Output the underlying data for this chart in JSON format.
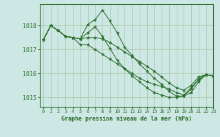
{
  "title": "Graphe pression niveau de la mer (hPa)",
  "bg_color": "#cde8e4",
  "grid_color": "#b0ccb0",
  "line_color": "#2d6e2d",
  "marker_color": "#2d6e2d",
  "xlim": [
    -0.5,
    23
  ],
  "ylim": [
    1014.6,
    1018.9
  ],
  "yticks": [
    1015,
    1016,
    1017,
    1018
  ],
  "xticks": [
    0,
    1,
    2,
    3,
    4,
    5,
    6,
    7,
    8,
    9,
    10,
    11,
    12,
    13,
    14,
    15,
    16,
    17,
    18,
    19,
    20,
    21,
    22,
    23
  ],
  "series": [
    [
      1017.4,
      1018.0,
      1017.8,
      1017.55,
      1017.5,
      1017.45,
      1018.05,
      1018.25,
      1018.65,
      1018.2,
      1017.7,
      1017.1,
      1016.75,
      1016.4,
      1016.1,
      1015.8,
      1015.55,
      1015.25,
      1015.05,
      1015.05,
      1015.2,
      1015.65,
      1015.95,
      1015.9
    ],
    [
      1017.4,
      1018.0,
      1017.8,
      1017.55,
      1017.5,
      1017.45,
      1017.7,
      1017.95,
      1017.55,
      1017.05,
      1016.55,
      1016.2,
      1015.9,
      1015.65,
      1015.4,
      1015.2,
      1015.1,
      1015.0,
      1015.0,
      1015.05,
      1015.35,
      1015.75,
      1015.95,
      1015.88
    ],
    [
      1017.4,
      1018.0,
      1017.8,
      1017.55,
      1017.5,
      1017.45,
      1017.5,
      1017.5,
      1017.45,
      1017.3,
      1017.1,
      1016.9,
      1016.7,
      1016.5,
      1016.3,
      1016.1,
      1015.85,
      1015.6,
      1015.4,
      1015.3,
      1015.5,
      1015.85,
      1015.95,
      1015.9
    ],
    [
      1017.4,
      1018.0,
      1017.8,
      1017.55,
      1017.5,
      1017.2,
      1017.2,
      1017.0,
      1016.8,
      1016.6,
      1016.4,
      1016.2,
      1016.0,
      1015.8,
      1015.65,
      1015.55,
      1015.45,
      1015.35,
      1015.2,
      1015.1,
      1015.4,
      1015.75,
      1015.95,
      1015.9
    ]
  ]
}
